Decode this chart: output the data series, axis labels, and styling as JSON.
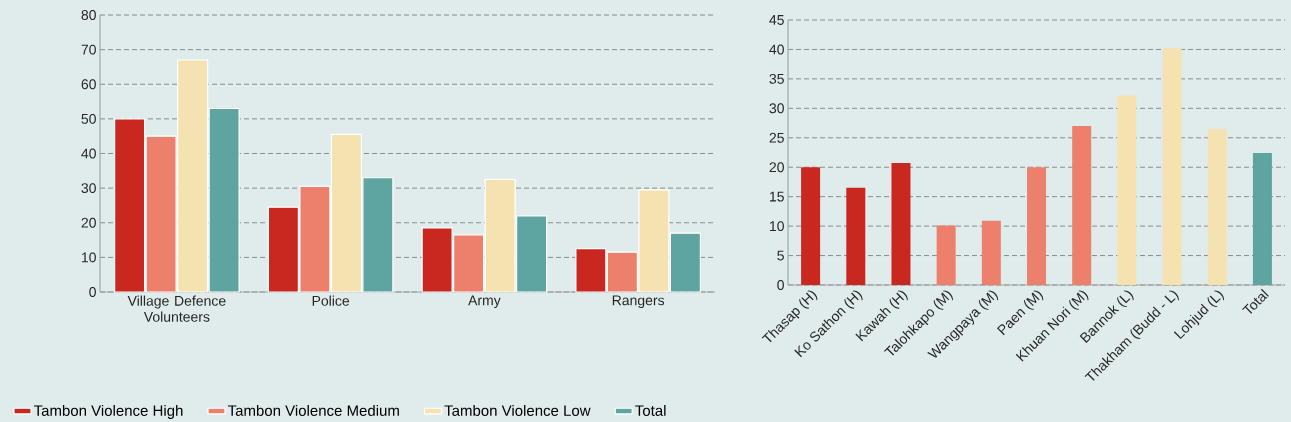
{
  "chart_data": [
    {
      "type": "bar",
      "categories": [
        "Village Defence Volunteers",
        "Police",
        "Army",
        "Rangers"
      ],
      "series": [
        {
          "name": "Tambon Violence High",
          "color": "#c8281f",
          "values": [
            50,
            24.5,
            18.5,
            12.5
          ]
        },
        {
          "name": "Tambon Violence Medium",
          "color": "#ec806d",
          "values": [
            45,
            30.5,
            16.5,
            11.5
          ]
        },
        {
          "name": "Tambon Violence Low",
          "color": "#f4e3b1",
          "values": [
            67,
            45.5,
            32.5,
            29.5
          ]
        },
        {
          "name": "Total",
          "color": "#5ea5a2",
          "values": [
            53,
            33,
            22,
            17
          ]
        }
      ],
      "ylim": [
        0,
        80
      ],
      "yticks": [
        0,
        10,
        20,
        30,
        40,
        50,
        60,
        70,
        80
      ],
      "grid": "y",
      "legend": "bottom"
    },
    {
      "type": "bar",
      "categories": [
        "Thasap (H)",
        "Ko Sathon (H)",
        "Kawah (H)",
        "Talohkapo (M)",
        "Wangpaya (M)",
        "Paen (M)",
        "Khuan Nori (M)",
        "Bannok (L)",
        "Thakham (Budd - L)",
        "Lohjud (L)",
        "Total"
      ],
      "values": [
        20,
        16.5,
        20.7,
        10.1,
        10.9,
        20,
        27,
        32.2,
        40.2,
        26.5,
        22.4
      ],
      "colors": [
        "#c8281f",
        "#c8281f",
        "#c8281f",
        "#ec806d",
        "#ec806d",
        "#ec806d",
        "#ec806d",
        "#f4e3b1",
        "#f4e3b1",
        "#f4e3b1",
        "#5ea5a2"
      ],
      "ylim": [
        0,
        45
      ],
      "yticks": [
        0,
        5,
        10,
        15,
        20,
        25,
        30,
        35,
        40,
        45
      ],
      "grid": "y"
    }
  ]
}
